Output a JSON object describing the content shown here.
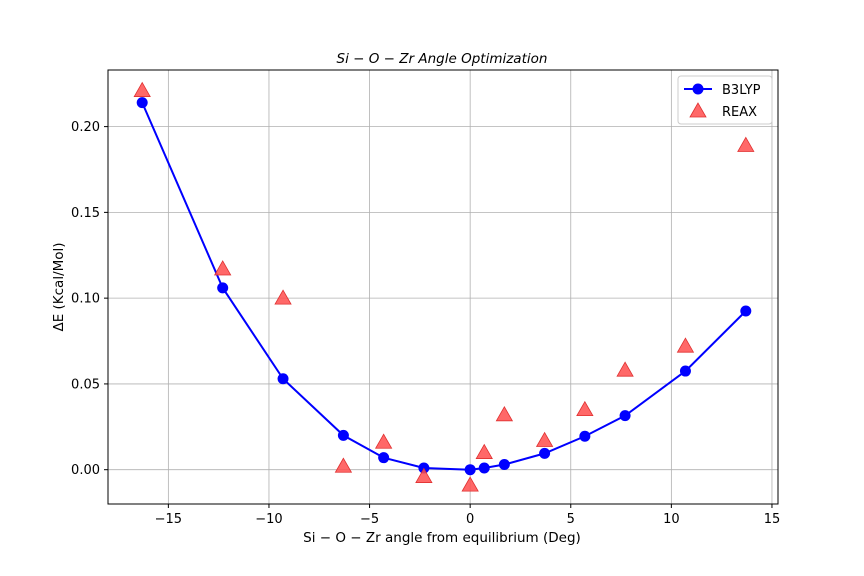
{
  "chart_data": {
    "type": "line",
    "title": "Si − O − Zr Angle Optimization",
    "xlabel": "Si − O − Zr angle from equilibrium (Deg)",
    "ylabel": "ΔE (Kcal/Mol)",
    "xlim": [
      -18,
      15.3
    ],
    "ylim": [
      -0.02,
      0.233
    ],
    "xticks": [
      -15,
      -10,
      -5,
      0,
      5,
      10,
      15
    ],
    "xtick_labels": [
      "−15",
      "−10",
      "−5",
      "0",
      "5",
      "10",
      "15"
    ],
    "yticks": [
      0.0,
      0.05,
      0.1,
      0.15,
      0.2
    ],
    "ytick_labels": [
      "0.00",
      "0.05",
      "0.10",
      "0.15",
      "0.20"
    ],
    "grid": true,
    "legend_position": "top-right",
    "series": [
      {
        "name": "B3LYP",
        "style": "line-marker-circle",
        "color": "#0000ff",
        "x": [
          -16.3,
          -12.3,
          -9.3,
          -6.3,
          -4.3,
          -2.3,
          0.0,
          0.7,
          1.7,
          3.7,
          5.7,
          7.7,
          10.7,
          13.7
        ],
        "y": [
          0.214,
          0.106,
          0.053,
          0.02,
          0.007,
          0.001,
          0.0,
          0.001,
          0.003,
          0.0095,
          0.0195,
          0.0315,
          0.0575,
          0.0925
        ]
      },
      {
        "name": "REAX",
        "style": "marker-triangle",
        "color": "#ff4d4d",
        "x": [
          -16.3,
          -12.3,
          -9.3,
          -6.3,
          -4.3,
          -2.3,
          0.0,
          0.7,
          1.7,
          3.7,
          5.7,
          7.7,
          10.7,
          13.7
        ],
        "y": [
          0.221,
          0.117,
          0.1,
          0.002,
          0.016,
          -0.004,
          -0.009,
          0.01,
          0.032,
          0.017,
          0.035,
          0.058,
          0.072,
          0.189
        ]
      }
    ]
  }
}
